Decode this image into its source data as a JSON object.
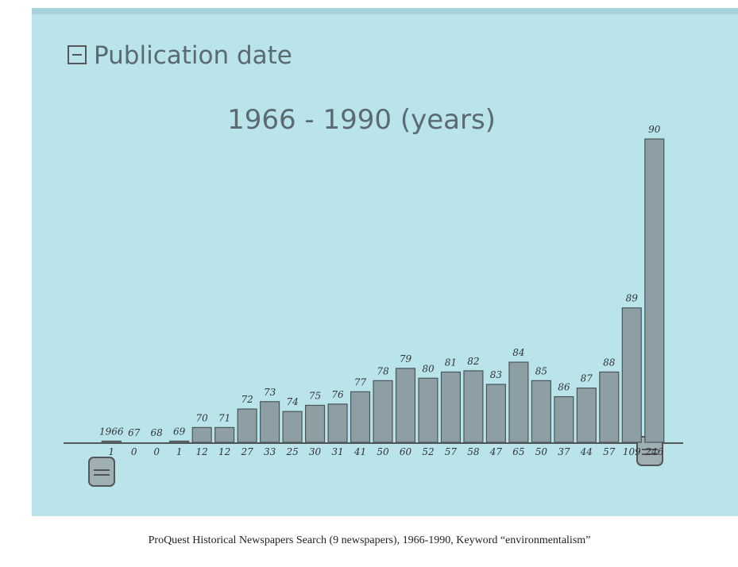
{
  "header": {
    "title": "Publication date"
  },
  "chart_data": {
    "type": "bar",
    "subtitle": "1966 - 1990 (years)",
    "categories": [
      "1966",
      "67",
      "68",
      "69",
      "70",
      "71",
      "72",
      "73",
      "74",
      "75",
      "76",
      "77",
      "78",
      "79",
      "80",
      "81",
      "82",
      "83",
      "84",
      "85",
      "86",
      "87",
      "88",
      "89",
      "90"
    ],
    "values": [
      1,
      0,
      0,
      1,
      12,
      12,
      27,
      33,
      25,
      30,
      31,
      41,
      50,
      60,
      52,
      57,
      58,
      47,
      65,
      50,
      37,
      44,
      57,
      109,
      246
    ],
    "color": "#8d9ea4"
  },
  "caption": "ProQuest Historical Newspapers Search (9 newspapers), 1966-1990, Keyword “environmentalism”"
}
